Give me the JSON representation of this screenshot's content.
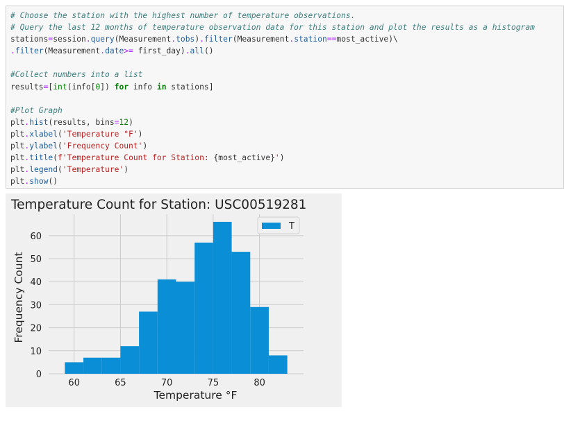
{
  "code_cell": {
    "lines": [
      [
        {
          "t": "# Choose the station with the highest number of temperature observations.",
          "c": "comment"
        }
      ],
      [
        {
          "t": "# Query the last 12 months of temperature observation data for this station and plot the results as a histogram",
          "c": "comment"
        }
      ],
      [
        {
          "t": "stations",
          "c": "plain"
        },
        {
          "t": "=",
          "c": "op"
        },
        {
          "t": "session",
          "c": "plain"
        },
        {
          "t": ".",
          "c": "op"
        },
        {
          "t": "query",
          "c": "attr"
        },
        {
          "t": "(Measurement",
          "c": "plain"
        },
        {
          "t": ".",
          "c": "op"
        },
        {
          "t": "tobs",
          "c": "attr"
        },
        {
          "t": ")",
          "c": "plain"
        },
        {
          "t": ".",
          "c": "op"
        },
        {
          "t": "filter",
          "c": "attr"
        },
        {
          "t": "(Measurement",
          "c": "plain"
        },
        {
          "t": ".",
          "c": "op"
        },
        {
          "t": "station",
          "c": "attr"
        },
        {
          "t": "==",
          "c": "op"
        },
        {
          "t": "most_active)\\",
          "c": "plain"
        }
      ],
      [
        {
          "t": ".",
          "c": "op"
        },
        {
          "t": "filter",
          "c": "attr"
        },
        {
          "t": "(Measurement",
          "c": "plain"
        },
        {
          "t": ".",
          "c": "op"
        },
        {
          "t": "date",
          "c": "attr"
        },
        {
          "t": ">=",
          "c": "op"
        },
        {
          "t": " first_day)",
          "c": "plain"
        },
        {
          "t": ".",
          "c": "op"
        },
        {
          "t": "all",
          "c": "attr"
        },
        {
          "t": "()",
          "c": "plain"
        }
      ],
      [],
      [
        {
          "t": "#Collect numbers into a list",
          "c": "comment"
        }
      ],
      [
        {
          "t": "results",
          "c": "plain"
        },
        {
          "t": "=",
          "c": "op"
        },
        {
          "t": "[",
          "c": "plain"
        },
        {
          "t": "int",
          "c": "builtin"
        },
        {
          "t": "(info[",
          "c": "plain"
        },
        {
          "t": "0",
          "c": "number"
        },
        {
          "t": "]) ",
          "c": "plain"
        },
        {
          "t": "for",
          "c": "keyword"
        },
        {
          "t": " info ",
          "c": "plain"
        },
        {
          "t": "in",
          "c": "keyword"
        },
        {
          "t": " stations]",
          "c": "plain"
        }
      ],
      [],
      [
        {
          "t": "#Plot Graph",
          "c": "comment"
        }
      ],
      [
        {
          "t": "plt",
          "c": "plain"
        },
        {
          "t": ".",
          "c": "op"
        },
        {
          "t": "hist",
          "c": "attr"
        },
        {
          "t": "(results, bins",
          "c": "plain"
        },
        {
          "t": "=",
          "c": "op"
        },
        {
          "t": "12",
          "c": "number"
        },
        {
          "t": ")",
          "c": "plain"
        }
      ],
      [
        {
          "t": "plt",
          "c": "plain"
        },
        {
          "t": ".",
          "c": "op"
        },
        {
          "t": "xlabel",
          "c": "attr"
        },
        {
          "t": "(",
          "c": "plain"
        },
        {
          "t": "'Temperature °F'",
          "c": "string"
        },
        {
          "t": ")",
          "c": "plain"
        }
      ],
      [
        {
          "t": "plt",
          "c": "plain"
        },
        {
          "t": ".",
          "c": "op"
        },
        {
          "t": "ylabel",
          "c": "attr"
        },
        {
          "t": "(",
          "c": "plain"
        },
        {
          "t": "'Frequency Count'",
          "c": "string"
        },
        {
          "t": ")",
          "c": "plain"
        }
      ],
      [
        {
          "t": "plt",
          "c": "plain"
        },
        {
          "t": ".",
          "c": "op"
        },
        {
          "t": "title",
          "c": "attr"
        },
        {
          "t": "(",
          "c": "plain"
        },
        {
          "t": "f'Temperature Count for Station: ",
          "c": "string"
        },
        {
          "t": "{most_active}",
          "c": "plain"
        },
        {
          "t": "'",
          "c": "string"
        },
        {
          "t": ")",
          "c": "plain"
        }
      ],
      [
        {
          "t": "plt",
          "c": "plain"
        },
        {
          "t": ".",
          "c": "op"
        },
        {
          "t": "legend",
          "c": "attr"
        },
        {
          "t": "(",
          "c": "plain"
        },
        {
          "t": "'Temperature'",
          "c": "string"
        },
        {
          "t": ")",
          "c": "plain"
        }
      ],
      [
        {
          "t": "plt",
          "c": "plain"
        },
        {
          "t": ".",
          "c": "op"
        },
        {
          "t": "show",
          "c": "attr"
        },
        {
          "t": "()",
          "c": "plain"
        }
      ]
    ]
  },
  "colors": {
    "bar": "#0a8fd7",
    "axes_bg": "#f0f0f0",
    "grid": "#cbcbcb",
    "text": "#222222"
  },
  "chart_data": {
    "type": "bar",
    "title": "Temperature Count for Station: USC00519281",
    "xlabel": "Temperature °F",
    "ylabel": "Frequency Count",
    "bin_edges": [
      59,
      61,
      63,
      65,
      67,
      69,
      71,
      73,
      75,
      77,
      79,
      81,
      83
    ],
    "values": [
      5,
      7,
      7,
      12,
      27,
      41,
      40,
      57,
      66,
      53,
      29,
      8
    ],
    "xlim": [
      57.25,
      84.75
    ],
    "ylim": [
      0,
      69.3
    ],
    "xticks": [
      60,
      65,
      70,
      75,
      80
    ],
    "yticks": [
      0,
      10,
      20,
      30,
      40,
      50,
      60
    ],
    "legend": {
      "entries": [
        "T"
      ],
      "placement": "top-right"
    },
    "grid": true
  }
}
